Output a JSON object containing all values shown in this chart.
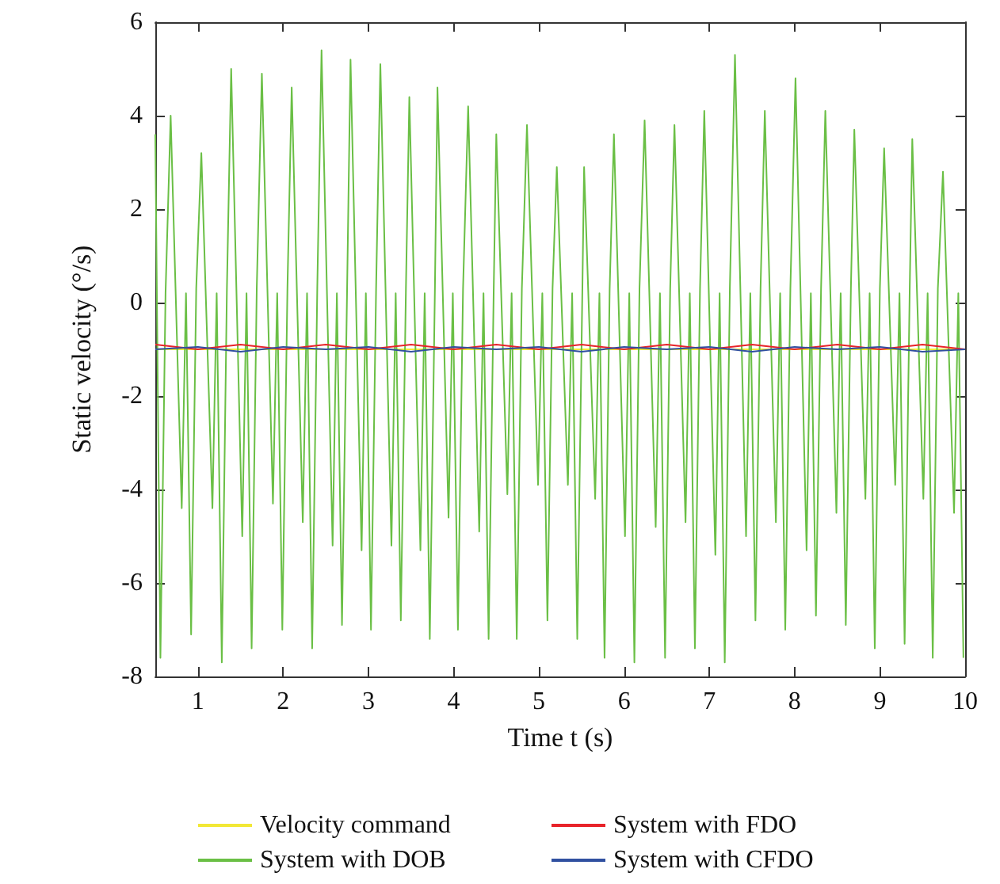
{
  "chart_data": {
    "type": "line",
    "xlabel": "Time t (s)",
    "ylabel": "Static velocity (°/s)",
    "xlim": [
      0.5,
      10
    ],
    "xticks": [
      1,
      2,
      3,
      4,
      5,
      6,
      7,
      8,
      9,
      10
    ],
    "ylim": [
      -8,
      6
    ],
    "yticks": [
      -8,
      -6,
      -4,
      -2,
      0,
      2,
      4,
      6
    ],
    "grid": false,
    "legend": "bottom",
    "series": [
      {
        "name": "Velocity command",
        "color": "#f2e836",
        "x": [
          0.5,
          10
        ],
        "values": [
          -1,
          -1
        ]
      },
      {
        "name": "System with DOB",
        "color": "#6abf45",
        "x": [
          0.5,
          0.56,
          0.62,
          0.68,
          0.81,
          0.86,
          0.92,
          0.98,
          1.04,
          1.17,
          1.22,
          1.28,
          1.34,
          1.39,
          1.52,
          1.57,
          1.63,
          1.69,
          1.75,
          1.88,
          1.93,
          1.99,
          2.05,
          2.1,
          2.23,
          2.28,
          2.34,
          2.4,
          2.45,
          2.58,
          2.63,
          2.69,
          2.75,
          2.79,
          2.92,
          2.97,
          3.03,
          3.09,
          3.14,
          3.27,
          3.32,
          3.38,
          3.44,
          3.48,
          3.61,
          3.66,
          3.72,
          3.78,
          3.81,
          3.94,
          3.99,
          4.05,
          4.11,
          4.17,
          4.3,
          4.35,
          4.41,
          4.47,
          4.5,
          4.63,
          4.68,
          4.74,
          4.8,
          4.86,
          4.99,
          5.04,
          5.1,
          5.16,
          5.21,
          5.34,
          5.39,
          5.45,
          5.51,
          5.53,
          5.66,
          5.71,
          5.77,
          5.83,
          5.88,
          6.01,
          6.06,
          6.12,
          6.18,
          6.24,
          6.37,
          6.42,
          6.48,
          6.54,
          6.59,
          6.72,
          6.77,
          6.83,
          6.89,
          6.94,
          7.07,
          7.12,
          7.18,
          7.24,
          7.3,
          7.43,
          7.48,
          7.54,
          7.6,
          7.65,
          7.78,
          7.83,
          7.89,
          7.95,
          8.01,
          8.14,
          8.19,
          8.25,
          8.31,
          8.36,
          8.49,
          8.54,
          8.6,
          8.66,
          8.7,
          8.83,
          8.88,
          8.94,
          9.0,
          9.05,
          9.18,
          9.23,
          9.29,
          9.35,
          9.38,
          9.51,
          9.56,
          9.62,
          9.68,
          9.74,
          9.87,
          9.92,
          9.98
        ],
        "values": [
          3.6,
          -7.6,
          0.2,
          4.0,
          -4.4,
          0.2,
          -7.1,
          0.3,
          3.2,
          -4.4,
          0.2,
          -7.7,
          0.3,
          5.0,
          -5.0,
          0.2,
          -7.4,
          0.3,
          4.9,
          -4.3,
          0.2,
          -7.0,
          0.3,
          4.6,
          -4.7,
          0.2,
          -7.4,
          0.3,
          5.4,
          -5.2,
          0.2,
          -6.9,
          0.3,
          5.2,
          -5.3,
          0.2,
          -7.0,
          0.3,
          5.1,
          -5.2,
          0.2,
          -6.8,
          0.3,
          4.4,
          -5.3,
          0.2,
          -7.2,
          0.3,
          4.6,
          -4.6,
          0.2,
          -7.0,
          0.3,
          4.2,
          -4.9,
          0.2,
          -7.2,
          0.3,
          3.6,
          -4.1,
          0.2,
          -7.2,
          0.3,
          3.8,
          -3.9,
          0.2,
          -6.8,
          0.3,
          2.9,
          -3.9,
          0.2,
          -7.2,
          0.3,
          2.9,
          -4.2,
          0.2,
          -7.6,
          0.3,
          3.6,
          -5.0,
          0.2,
          -7.7,
          0.3,
          3.9,
          -4.8,
          0.2,
          -7.6,
          0.3,
          3.8,
          -4.7,
          0.2,
          -7.4,
          0.3,
          4.1,
          -5.4,
          0.2,
          -7.7,
          0.3,
          5.3,
          -5.0,
          0.2,
          -6.8,
          0.3,
          4.1,
          -4.7,
          0.2,
          -7.0,
          0.3,
          4.8,
          -5.3,
          0.2,
          -6.7,
          0.3,
          4.1,
          -4.5,
          0.2,
          -6.9,
          0.3,
          3.7,
          -4.2,
          0.2,
          -7.4,
          0.3,
          3.3,
          -3.9,
          0.2,
          -7.3,
          0.3,
          3.5,
          -4.2,
          0.2,
          -7.6,
          0.3,
          2.8,
          -4.5,
          0.2,
          -7.6
        ]
      },
      {
        "name": "System with FDO",
        "color": "#e8232a",
        "x": [
          0.5,
          1,
          1.5,
          2,
          2.5,
          3,
          3.5,
          4,
          4.5,
          5,
          5.5,
          6,
          6.5,
          7,
          7.5,
          8,
          8.5,
          9,
          9.5,
          10
        ],
        "values": [
          -0.9,
          -1.0,
          -0.9,
          -1.0,
          -0.9,
          -1.0,
          -0.9,
          -1.0,
          -0.9,
          -1.0,
          -0.9,
          -1.0,
          -0.9,
          -1.0,
          -0.9,
          -1.0,
          -0.9,
          -1.0,
          -0.9,
          -1.0
        ]
      },
      {
        "name": "System with CFDO",
        "color": "#3050a0",
        "x": [
          0.5,
          1,
          1.5,
          2,
          2.5,
          3,
          3.5,
          4,
          4.5,
          5,
          5.5,
          6,
          6.5,
          7,
          7.5,
          8,
          8.5,
          9,
          9.5,
          10
        ],
        "values": [
          -1.0,
          -0.95,
          -1.05,
          -0.95,
          -1.0,
          -0.95,
          -1.05,
          -0.95,
          -1.0,
          -0.95,
          -1.05,
          -0.95,
          -1.0,
          -0.95,
          -1.05,
          -0.95,
          -1.0,
          -0.95,
          -1.05,
          -1.0
        ]
      }
    ]
  }
}
